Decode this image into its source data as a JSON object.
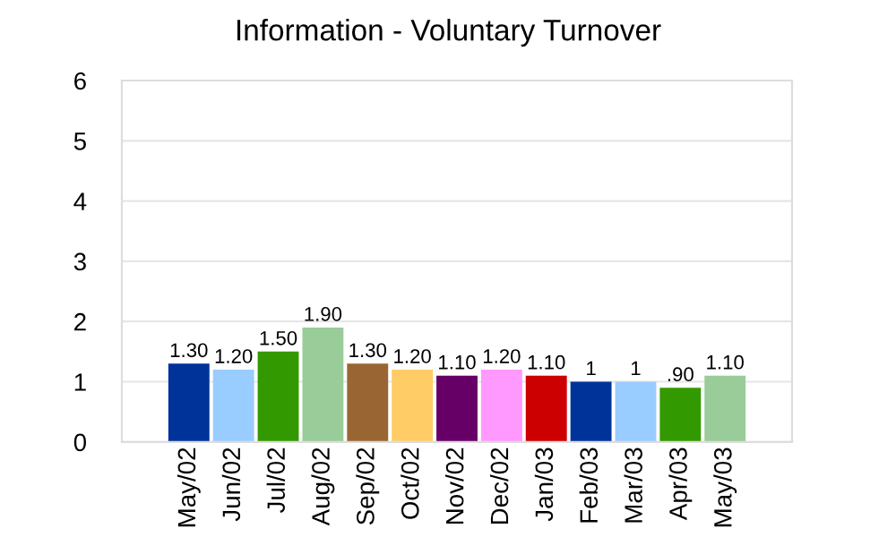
{
  "chart_data": {
    "type": "bar",
    "title": "Information - Voluntary Turnover",
    "categories": [
      "May/02",
      "Jun/02",
      "Jul/02",
      "Aug/02",
      "Sep/02",
      "Oct/02",
      "Nov/02",
      "Dec/02",
      "Jan/03",
      "Feb/03",
      "Mar/03",
      "Apr/03",
      "May/03"
    ],
    "values": [
      1.3,
      1.2,
      1.5,
      1.9,
      1.3,
      1.2,
      1.1,
      1.2,
      1.1,
      1,
      1,
      0.9,
      1.1
    ],
    "value_labels": [
      "1.30",
      "1.20",
      "1.50",
      "1.90",
      "1.30",
      "1.20",
      "1.10",
      "1.20",
      "1.10",
      "1",
      "1",
      ".90",
      "1.10"
    ],
    "colors": [
      "#003399",
      "#99ccff",
      "#339900",
      "#99cc99",
      "#996633",
      "#ffcc66",
      "#660066",
      "#ff99ff",
      "#cc0000",
      "#003399",
      "#99ccff",
      "#339900",
      "#99cc99"
    ],
    "ylim": [
      0,
      6
    ],
    "yticks": [
      0,
      1,
      2,
      3,
      4,
      5,
      6
    ],
    "grid": "y"
  }
}
